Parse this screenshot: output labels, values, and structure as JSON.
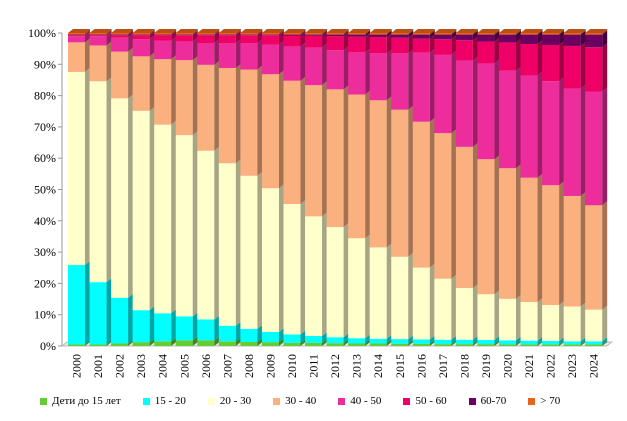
{
  "chart_data": {
    "type": "bar",
    "stacked": "percent",
    "three_d": true,
    "categories": [
      "2000",
      "2001",
      "2002",
      "2003",
      "2004",
      "2005",
      "2006",
      "2007",
      "2008",
      "2009",
      "2010",
      "2011",
      "2012",
      "2013",
      "2014",
      "2015",
      "2016",
      "2017",
      "2018",
      "2019",
      "2020",
      "2021",
      "2022",
      "2023",
      "2024"
    ],
    "y_ticks": [
      "0%",
      "10%",
      "20%",
      "30%",
      "40%",
      "50%",
      "60%",
      "70%",
      "80%",
      "90%",
      "100%"
    ],
    "ylim": [
      0,
      100
    ],
    "legend_position": "bottom",
    "series": [
      {
        "name": "Дети до 15 лет",
        "color": "#66cc33",
        "values": [
          0.5,
          0.5,
          0.8,
          1.2,
          1.5,
          1.8,
          1.8,
          1.5,
          1.3,
          1.2,
          1,
          1,
          0.9,
          0.8,
          0.8,
          0.7,
          0.7,
          0.6,
          0.6,
          0.6,
          0.5,
          0.5,
          0.5,
          0.5,
          0.5
        ]
      },
      {
        "name": "15 - 20",
        "color": "#00ffff",
        "values": [
          25.5,
          20,
          14.7,
          10.3,
          9,
          7.7,
          6.7,
          5,
          4.2,
          3.3,
          2.7,
          2.2,
          1.9,
          1.7,
          1.5,
          1.5,
          1.4,
          1.4,
          1.4,
          1.3,
          1.3,
          1.2,
          1.1,
          1,
          1
        ]
      },
      {
        "name": "20 - 30",
        "color": "#ffffcc",
        "values": [
          62,
          64.5,
          64,
          64,
          60.5,
          58,
          54,
          52,
          49,
          46,
          41.8,
          38.3,
          35.2,
          32,
          29.2,
          26.3,
          22.9,
          19.5,
          16.5,
          14.6,
          13.2,
          12.3,
          11.4,
          11,
          10
        ]
      },
      {
        "name": "30 - 40",
        "color": "#fbb080",
        "values": [
          9.5,
          11.5,
          15,
          17.5,
          21,
          24,
          27.5,
          30.5,
          34,
          36.5,
          39.5,
          42,
          44,
          46,
          47,
          47,
          46.5,
          46.5,
          45,
          43,
          41.5,
          39.5,
          38,
          35,
          33
        ]
      },
      {
        "name": "40 - 50",
        "color": "#ee2d9c",
        "values": [
          2,
          3,
          4.5,
          5.5,
          6,
          6,
          7,
          8,
          8.5,
          9.5,
          11,
          12,
          12.5,
          13.5,
          15,
          18,
          22,
          25,
          27.5,
          30.5,
          31,
          32.5,
          33,
          34,
          36
        ]
      },
      {
        "name": "50 - 60",
        "color": "#ef0066",
        "values": [
          0.3,
          0.3,
          0.8,
          1.3,
          1.7,
          2,
          2.5,
          2.5,
          2.5,
          3,
          3.5,
          3.8,
          4.5,
          5,
          5.2,
          5,
          4.5,
          5,
          6.5,
          7,
          9,
          10,
          11.5,
          13.5,
          14
        ]
      },
      {
        "name": "60-70",
        "color": "#6b0062",
        "values": [
          0.2,
          0.2,
          0.2,
          0.2,
          0.2,
          0.2,
          0.2,
          0.2,
          0.2,
          0.2,
          0.3,
          0.4,
          0.5,
          0.7,
          0.8,
          1,
          1.3,
          1.5,
          1.8,
          2.2,
          2.5,
          3,
          3.3,
          3.6,
          4
        ]
      },
      {
        "name": "> 70",
        "color": "#e8641c",
        "values": [
          0.5,
          0.5,
          0.5,
          0.5,
          0.5,
          0.5,
          0.5,
          0.5,
          0.5,
          0.5,
          0.5,
          0.5,
          0.5,
          0.5,
          0.5,
          0.5,
          0.5,
          0.5,
          0.5,
          0.5,
          0.5,
          0.5,
          0.5,
          0.5,
          0.5
        ]
      }
    ]
  }
}
